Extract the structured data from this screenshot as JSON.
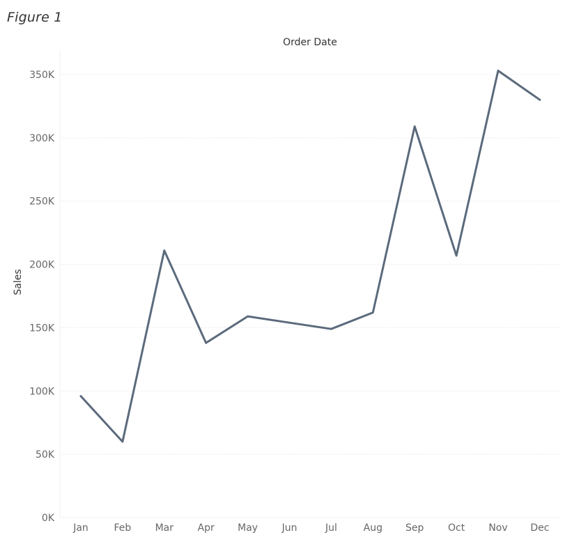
{
  "figure_label": "Figure 1",
  "colors": {
    "line": "#5b6a7c",
    "grid": "#ececec",
    "tick_text": "#666666",
    "title_text": "#333333"
  },
  "chart_data": {
    "type": "line",
    "title": "Order Date",
    "xlabel": "",
    "ylabel": "Sales",
    "categories": [
      "Jan",
      "Feb",
      "Mar",
      "Apr",
      "May",
      "Jun",
      "Jul",
      "Aug",
      "Sep",
      "Oct",
      "Nov",
      "Dec"
    ],
    "series": [
      {
        "values": [
          96000,
          60000,
          211000,
          138000,
          159000,
          154000,
          149000,
          162000,
          309000,
          207000,
          353000,
          330000
        ]
      }
    ],
    "ylim": [
      0,
      350000
    ],
    "yticks": [
      0,
      50000,
      100000,
      150000,
      200000,
      250000,
      300000,
      350000
    ],
    "ytick_labels": [
      "0K",
      "50K",
      "100K",
      "150K",
      "200K",
      "250K",
      "300K",
      "350K"
    ],
    "grid": true,
    "legend": "none"
  }
}
